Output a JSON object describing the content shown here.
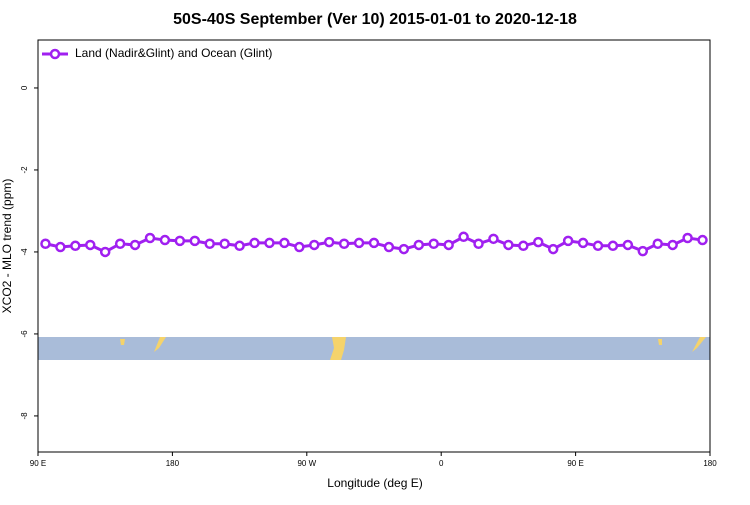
{
  "chart_data": {
    "type": "line",
    "title": "50S-40S September (Ver 10)   2015-01-01 to 2020-12-18",
    "x_label": "Longitude (deg E)",
    "y_label": "XCO2 - MLO trend (ppm)",
    "x": [
      95,
      105,
      115,
      125,
      135,
      145,
      155,
      165,
      175,
      185,
      195,
      205,
      215,
      225,
      235,
      245,
      255,
      265,
      275,
      285,
      295,
      305,
      315,
      325,
      335,
      345,
      355,
      365,
      375,
      385,
      395,
      405,
      415,
      425,
      435,
      445,
      455,
      465,
      475,
      485,
      495,
      505,
      515,
      525,
      535
    ],
    "series": [
      {
        "name": "Land (Nadir&Glint) and Ocean (Glint)",
        "color": "#a020f0",
        "values": [
          -3.8,
          -3.88,
          -3.85,
          -3.83,
          -4.0,
          -3.8,
          -3.83,
          -3.66,
          -3.71,
          -3.73,
          -3.73,
          -3.8,
          -3.8,
          -3.85,
          -3.78,
          -3.78,
          -3.78,
          -3.88,
          -3.83,
          -3.76,
          -3.8,
          -3.78,
          -3.78,
          -3.88,
          -3.93,
          -3.83,
          -3.8,
          -3.83,
          -3.63,
          -3.8,
          -3.68,
          -3.83,
          -3.85,
          -3.76,
          -3.93,
          -3.73,
          -3.78,
          -3.85,
          -3.85,
          -3.83,
          -3.98,
          -3.8,
          -3.83,
          -3.66,
          -3.71
        ]
      }
    ],
    "xlim": [
      90,
      540
    ],
    "xticks": [
      {
        "value": 90,
        "label": "90 E"
      },
      {
        "value": 180,
        "label": "180"
      },
      {
        "value": 270,
        "label": "90 W"
      },
      {
        "value": 360,
        "label": "0"
      },
      {
        "value": 450,
        "label": "90 E"
      },
      {
        "value": 540,
        "label": "180"
      }
    ],
    "ylim": [
      -8.88,
      1.17
    ],
    "yticks": [
      0,
      -2,
      -4,
      -6,
      -8
    ],
    "legend": "upper left"
  }
}
